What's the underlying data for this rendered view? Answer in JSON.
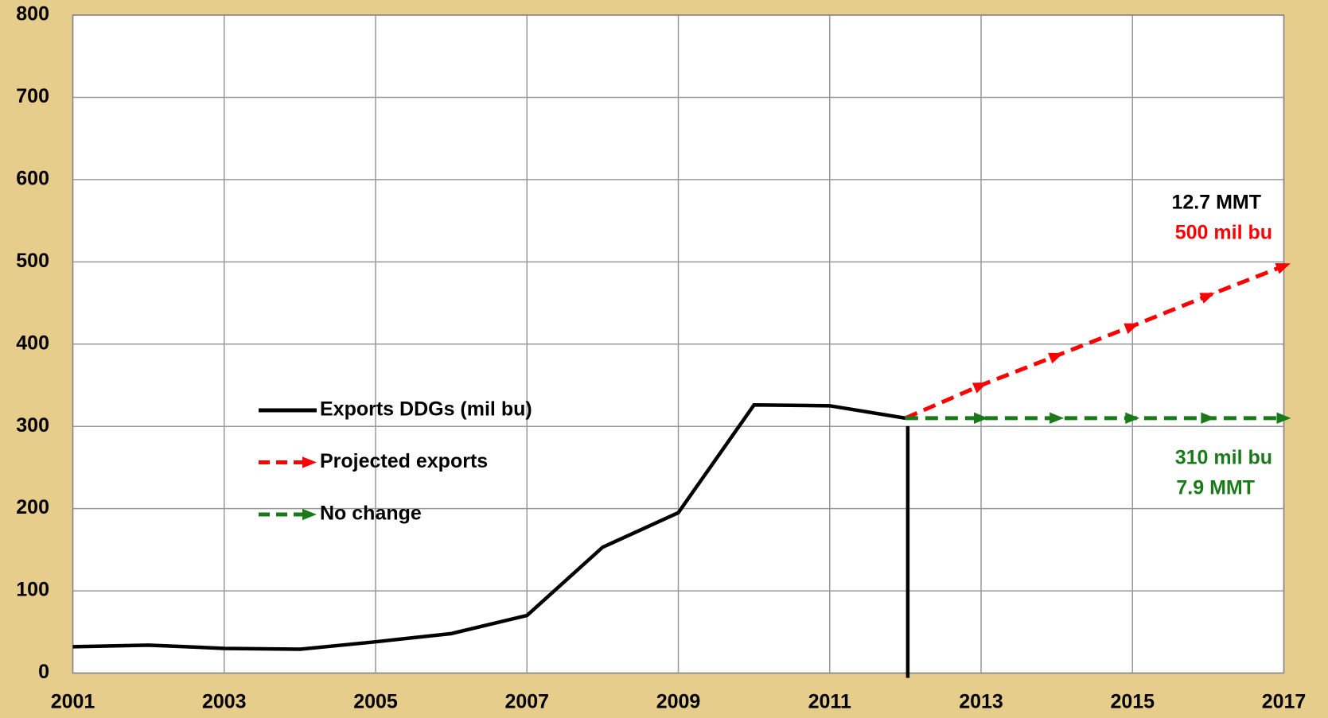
{
  "chart_data": {
    "type": "line",
    "x": [
      2001,
      2002,
      2003,
      2004,
      2005,
      2006,
      2007,
      2008,
      2009,
      2010,
      2011,
      2012,
      2013,
      2014,
      2015,
      2016,
      2017
    ],
    "series": [
      {
        "name": "Exports DDGs (mil bu)",
        "color": "#000000",
        "style": "solid",
        "values": [
          32,
          34,
          30,
          29,
          38,
          48,
          70,
          153,
          195,
          326,
          325,
          310,
          null,
          null,
          null,
          null,
          null
        ]
      },
      {
        "name": "Projected exports",
        "color": "#ff0000",
        "style": "dashed",
        "values": [
          null,
          null,
          null,
          null,
          null,
          null,
          null,
          null,
          null,
          null,
          null,
          310,
          350,
          386,
          422,
          459,
          495
        ]
      },
      {
        "name": "No change",
        "color": "#1a7a1a",
        "style": "dashed",
        "values": [
          null,
          null,
          null,
          null,
          null,
          null,
          null,
          null,
          null,
          null,
          null,
          310,
          310,
          310,
          310,
          310,
          310
        ]
      }
    ],
    "annotations": [
      {
        "text": "12.7 MMT",
        "color": "#000000"
      },
      {
        "text": "500 mil bu",
        "color": "#ff0000"
      },
      {
        "text": "310 mil bu",
        "color": "#1a7a1a"
      },
      {
        "text": "7.9 MMT",
        "color": "#1a7a1a"
      }
    ],
    "xlim": [
      2001,
      2017
    ],
    "xticks": [
      2001,
      2003,
      2005,
      2007,
      2009,
      2011,
      2013,
      2015,
      2017
    ],
    "ylim": [
      0,
      800
    ],
    "yticks": [
      0,
      100,
      200,
      300,
      400,
      500,
      600,
      700,
      800
    ],
    "grid": true
  }
}
